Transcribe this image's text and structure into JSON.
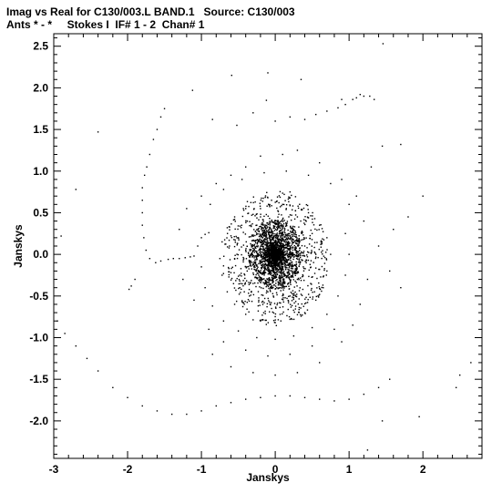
{
  "header": {
    "line1": "Imag vs Real for C130/003.L BAND.1   Source: C130/003",
    "line2": "Ants * - *     Stokes I  IF# 1 - 2  Chan# 1"
  },
  "chart_data": {
    "type": "scatter",
    "xlabel": "Janskys",
    "ylabel": "Janskys",
    "xlim": [
      -3.0,
      2.8
    ],
    "ylim": [
      -2.45,
      2.65
    ],
    "x_ticks": [
      -3,
      -2,
      -1,
      0,
      1,
      2
    ],
    "y_ticks": [
      -2.0,
      -1.5,
      -1.0,
      -0.5,
      0.0,
      0.5,
      1.0,
      1.5,
      2.0,
      2.5
    ],
    "x_tick_labels": [
      "-3",
      "-2",
      "-1",
      "0",
      "1",
      "2"
    ],
    "y_tick_labels": [
      "-2.0",
      "-1.5",
      "-1.0",
      "-0.5",
      "0.0",
      "0.5",
      "1.0",
      "1.5",
      "2.0",
      "2.5"
    ],
    "grid": false,
    "marker_color": "#000000",
    "points": [
      [
        1.46,
        2.53
      ],
      [
        -0.59,
        2.15
      ],
      [
        -0.1,
        2.18
      ],
      [
        0.35,
        2.1
      ],
      [
        -1.12,
        1.97
      ],
      [
        -0.12,
        1.85
      ],
      [
        -0.3,
        1.7
      ],
      [
        0.0,
        1.6
      ],
      [
        0.2,
        1.65
      ],
      [
        0.4,
        1.62
      ],
      [
        0.55,
        1.68
      ],
      [
        0.7,
        1.72
      ],
      [
        0.85,
        1.76
      ],
      [
        0.95,
        1.8
      ],
      [
        1.05,
        1.86
      ],
      [
        1.1,
        1.88
      ],
      [
        1.15,
        1.92
      ],
      [
        1.2,
        1.9
      ],
      [
        1.28,
        1.9
      ],
      [
        1.34,
        1.86
      ],
      [
        0.9,
        1.86
      ],
      [
        -0.85,
        1.62
      ],
      [
        -0.52,
        1.55
      ],
      [
        -1.5,
        1.75
      ],
      [
        -1.55,
        1.65
      ],
      [
        -1.6,
        1.5
      ],
      [
        -1.65,
        1.38
      ],
      [
        -1.7,
        1.2
      ],
      [
        -1.74,
        1.05
      ],
      [
        -1.77,
        0.95
      ],
      [
        -1.8,
        0.8
      ],
      [
        -1.8,
        0.65
      ],
      [
        -1.8,
        0.5
      ],
      [
        -1.8,
        0.35
      ],
      [
        -1.78,
        0.2
      ],
      [
        -1.75,
        0.05
      ],
      [
        -1.7,
        -0.05
      ],
      [
        -1.62,
        -0.1
      ],
      [
        -1.55,
        -0.08
      ],
      [
        -1.45,
        -0.06
      ],
      [
        -1.38,
        -0.05
      ],
      [
        -1.3,
        -0.05
      ],
      [
        -1.22,
        -0.04
      ],
      [
        -1.15,
        -0.03
      ],
      [
        -1.1,
        -0.02
      ],
      [
        -1.05,
        0.1
      ],
      [
        -1.0,
        0.2
      ],
      [
        -0.95,
        0.24
      ],
      [
        -0.9,
        0.26
      ],
      [
        -1.9,
        -0.3
      ],
      [
        -1.95,
        -0.38
      ],
      [
        -1.98,
        -0.42
      ],
      [
        -2.4,
        1.47
      ],
      [
        -2.7,
        0.78
      ],
      [
        -2.9,
        0.22
      ],
      [
        -2.95,
        -0.8
      ],
      [
        -2.85,
        -0.95
      ],
      [
        -2.7,
        -1.1
      ],
      [
        -2.55,
        -1.25
      ],
      [
        -2.4,
        -1.4
      ],
      [
        -2.2,
        -1.6
      ],
      [
        -2.0,
        -1.72
      ],
      [
        -1.8,
        -1.82
      ],
      [
        -1.6,
        -1.88
      ],
      [
        -1.4,
        -1.92
      ],
      [
        -1.2,
        -1.92
      ],
      [
        -1.0,
        -1.88
      ],
      [
        -0.8,
        -1.82
      ],
      [
        -0.6,
        -1.78
      ],
      [
        -0.4,
        -1.74
      ],
      [
        -0.2,
        -1.72
      ],
      [
        0.0,
        -1.7
      ],
      [
        0.2,
        -1.7
      ],
      [
        0.4,
        -1.72
      ],
      [
        0.6,
        -1.74
      ],
      [
        0.8,
        -1.76
      ],
      [
        1.0,
        -1.74
      ],
      [
        1.2,
        -1.68
      ],
      [
        1.4,
        -1.6
      ],
      [
        1.55,
        -1.5
      ],
      [
        1.25,
        -2.35
      ],
      [
        2.5,
        -1.45
      ],
      [
        2.45,
        -1.6
      ],
      [
        2.65,
        -1.3
      ],
      [
        2.0,
        0.7
      ],
      [
        1.8,
        0.45
      ],
      [
        1.6,
        0.3
      ],
      [
        1.4,
        0.1
      ],
      [
        1.7,
        -0.4
      ],
      [
        1.55,
        -0.2
      ],
      [
        1.45,
        1.3
      ],
      [
        1.3,
        1.05
      ],
      [
        1.0,
        0.6
      ],
      [
        0.9,
        0.9
      ],
      [
        0.6,
        1.1
      ],
      [
        0.3,
        1.25
      ],
      [
        0.1,
        1.2
      ],
      [
        -0.2,
        1.18
      ],
      [
        -0.4,
        1.05
      ],
      [
        -0.6,
        0.95
      ],
      [
        -0.8,
        0.85
      ],
      [
        -1.0,
        0.7
      ],
      [
        -1.2,
        0.55
      ],
      [
        0.2,
        0.75
      ],
      [
        -0.1,
        0.68
      ],
      [
        -0.05,
        0.65
      ],
      [
        0.1,
        0.6
      ],
      [
        -0.2,
        0.55
      ],
      [
        0.45,
        0.5
      ],
      [
        0.6,
        0.35
      ],
      [
        0.7,
        0.2
      ],
      [
        0.75,
        0.0
      ],
      [
        0.7,
        -0.2
      ],
      [
        0.65,
        -0.4
      ],
      [
        0.55,
        -0.55
      ],
      [
        0.4,
        -0.7
      ],
      [
        0.2,
        -0.78
      ],
      [
        0.0,
        -0.82
      ],
      [
        -0.2,
        -0.8
      ],
      [
        -0.4,
        -0.72
      ],
      [
        -0.55,
        -0.6
      ],
      [
        -0.65,
        -0.45
      ],
      [
        -0.72,
        -0.25
      ],
      [
        -0.75,
        -0.05
      ],
      [
        -0.72,
        0.15
      ],
      [
        -0.65,
        0.32
      ],
      [
        -0.55,
        0.45
      ],
      [
        -0.4,
        0.55
      ],
      [
        0.95,
        0.25
      ],
      [
        1.0,
        0.0
      ],
      [
        0.95,
        -0.25
      ],
      [
        0.85,
        -0.5
      ],
      [
        0.7,
        -0.72
      ],
      [
        0.5,
        -0.88
      ],
      [
        0.25,
        -0.98
      ],
      [
        0.0,
        -1.02
      ],
      [
        -0.25,
        -1.0
      ],
      [
        -0.5,
        -0.92
      ],
      [
        -0.7,
        -0.8
      ],
      [
        -0.85,
        -0.62
      ],
      [
        -0.95,
        -0.4
      ],
      [
        -1.0,
        -0.15
      ],
      [
        0.8,
        -0.9
      ],
      [
        0.5,
        -1.1
      ],
      [
        0.2,
        -1.2
      ],
      [
        -0.1,
        -1.22
      ],
      [
        -0.4,
        -1.15
      ],
      [
        -0.7,
        -1.05
      ],
      [
        -0.9,
        -0.9
      ],
      [
        -1.1,
        -0.55
      ],
      [
        1.15,
        -0.6
      ],
      [
        1.05,
        -0.85
      ],
      [
        0.9,
        -1.05
      ],
      [
        0.6,
        -1.3
      ],
      [
        0.3,
        -1.42
      ],
      [
        0.0,
        -1.45
      ],
      [
        -0.3,
        -1.42
      ],
      [
        -0.6,
        -1.35
      ],
      [
        -0.85,
        -1.2
      ],
      [
        1.25,
        -0.3
      ],
      [
        1.2,
        0.4
      ],
      [
        1.1,
        0.7
      ],
      [
        0.75,
        0.85
      ],
      [
        0.45,
        0.95
      ],
      [
        0.15,
        1.0
      ],
      [
        -0.15,
        0.98
      ],
      [
        -0.45,
        0.9
      ],
      [
        -0.7,
        0.78
      ],
      [
        -0.88,
        0.6
      ],
      [
        -1.3,
        0.3
      ],
      [
        -1.25,
        -0.3
      ],
      [
        1.95,
        -1.95
      ],
      [
        1.45,
        -2.0
      ],
      [
        1.7,
        1.32
      ],
      [
        0.25,
        0.3
      ],
      [
        -0.25,
        0.35
      ],
      [
        0.3,
        -0.3
      ],
      [
        -0.3,
        -0.35
      ],
      [
        0.4,
        0.1
      ],
      [
        -0.4,
        0.05
      ],
      [
        0.1,
        0.42
      ],
      [
        -0.1,
        -0.45
      ],
      [
        0.38,
        -0.15
      ],
      [
        -0.38,
        -0.2
      ],
      [
        0.2,
        -0.5
      ],
      [
        -0.2,
        0.45
      ],
      [
        0.5,
        0.25
      ],
      [
        -0.5,
        0.2
      ],
      [
        0.48,
        -0.35
      ],
      [
        -0.48,
        -0.4
      ],
      [
        0.55,
        0.0
      ],
      [
        -0.55,
        -0.05
      ],
      [
        0.15,
        0.55
      ],
      [
        -0.15,
        -0.58
      ],
      [
        0.3,
        0.45
      ],
      [
        -0.3,
        0.48
      ],
      [
        0.35,
        -0.48
      ],
      [
        -0.35,
        -0.5
      ],
      [
        0.62,
        0.15
      ],
      [
        -0.62,
        0.1
      ],
      [
        0.6,
        -0.18
      ],
      [
        -0.6,
        -0.22
      ],
      [
        0.05,
        0.62
      ],
      [
        -0.05,
        -0.65
      ]
    ]
  }
}
